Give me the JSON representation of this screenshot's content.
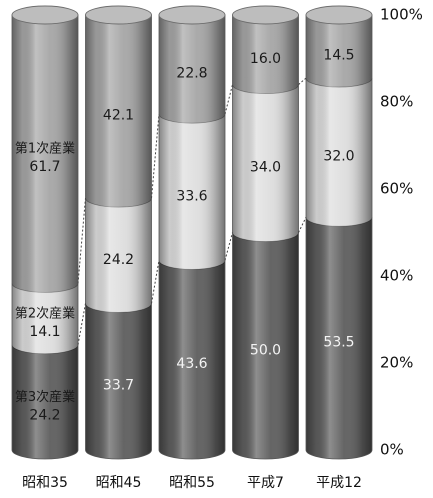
{
  "chart_data": {
    "type": "bar",
    "stacked": true,
    "categories": [
      "昭和35",
      "昭和45",
      "昭和55",
      "平成7",
      "平成12"
    ],
    "series": [
      {
        "name": "第3次産業",
        "values": [
          24.2,
          33.7,
          43.6,
          50.0,
          53.5
        ],
        "color": "#5e5e5e"
      },
      {
        "name": "第2次産業",
        "values": [
          14.1,
          24.2,
          33.6,
          34.0,
          32.0
        ],
        "color": "#dedede"
      },
      {
        "name": "第1次産業",
        "values": [
          61.7,
          42.1,
          22.8,
          16.0,
          14.5
        ],
        "color": "#a6a6a6"
      }
    ],
    "ylim": [
      0,
      100
    ],
    "yticks": [
      0,
      20,
      40,
      60,
      80,
      100
    ],
    "ytick_labels": [
      "0%",
      "20%",
      "40%",
      "60%",
      "80%",
      "100%"
    ],
    "y_axis_side": "right",
    "grid": false
  }
}
